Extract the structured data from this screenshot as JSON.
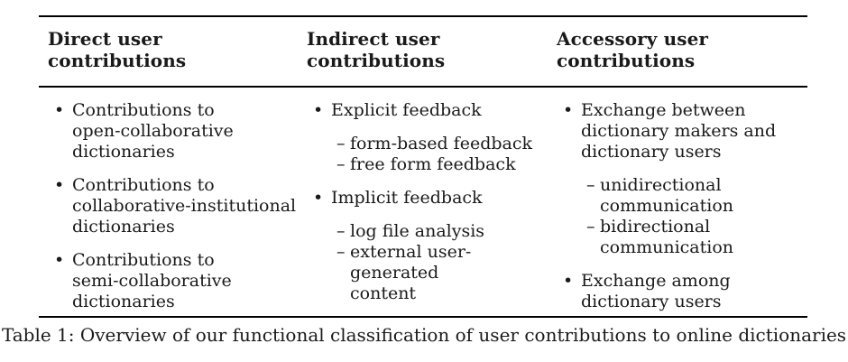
{
  "markers": {
    "bullet": "•",
    "dash": "–"
  },
  "table": {
    "columns": [
      {
        "header": "Direct user\ncontributions",
        "items": [
          {
            "text": "Contributions to\nopen-collaborative\ndictionaries"
          },
          {
            "text": "Contributions to\ncollaborative-institutional\ndictionaries"
          },
          {
            "text": "Contributions to\nsemi-collaborative\ndictionaries"
          }
        ]
      },
      {
        "header": "Indirect user\ncontributions",
        "items": [
          {
            "text": "Explicit feedback",
            "subitems": [
              "form-based feedback",
              "free form feedback"
            ]
          },
          {
            "text": "Implicit feedback",
            "subitems": [
              "log file analysis",
              "external user-generated\ncontent"
            ]
          }
        ]
      },
      {
        "header": "Accessory user\ncontributions",
        "items": [
          {
            "text": "Exchange between\ndictionary makers and\ndictionary users",
            "subitems": [
              "unidirectional\ncommunication",
              "bidirectional\ncommunication"
            ]
          },
          {
            "text": "Exchange among\ndictionary users"
          }
        ]
      }
    ]
  },
  "caption": "Table 1: Overview of our functional classification of user contributions to online dictionaries"
}
